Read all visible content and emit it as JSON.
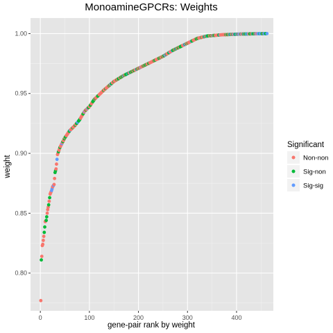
{
  "chart_data": {
    "type": "scatter",
    "title": "MonoamineGPCRs: Weights",
    "xlabel": "gene-pair rank by weight",
    "ylabel": "weight",
    "xlim": [
      -20,
      475
    ],
    "ylim": [
      0.7685,
      1.013
    ],
    "x_ticks": [
      0,
      100,
      200,
      300,
      400
    ],
    "y_ticks": [
      0.8,
      0.85,
      0.9,
      0.95,
      1.0
    ],
    "y_tick_labels": [
      "0.80",
      "0.85",
      "0.90",
      "0.95",
      "1.00"
    ],
    "background": "#e5e5e5",
    "grid": true,
    "legend": {
      "title": "Significant",
      "position": "right",
      "entries": [
        {
          "label": "Non-non",
          "color": "#f8766d"
        },
        {
          "label": "Sig-non",
          "color": "#00ba38"
        },
        {
          "label": "Sig-sig",
          "color": "#619cff"
        }
      ]
    },
    "series": [
      {
        "name": "Non-non",
        "color": "#f8766d"
      },
      {
        "name": "Sig-non",
        "color": "#00ba38"
      },
      {
        "name": "Sig-sig",
        "color": "#619cff"
      }
    ],
    "curve_anchors": [
      [
        1,
        0.777
      ],
      [
        2,
        0.811
      ],
      [
        3,
        0.814
      ],
      [
        4,
        0.823
      ],
      [
        5,
        0.824
      ],
      [
        8,
        0.834
      ],
      [
        10,
        0.843
      ],
      [
        12,
        0.844
      ],
      [
        15,
        0.853
      ],
      [
        17,
        0.857
      ],
      [
        20,
        0.866
      ],
      [
        23,
        0.869
      ],
      [
        25,
        0.872
      ],
      [
        28,
        0.874
      ],
      [
        30,
        0.884
      ],
      [
        32,
        0.887
      ],
      [
        35,
        0.899
      ],
      [
        40,
        0.905
      ],
      [
        45,
        0.909
      ],
      [
        50,
        0.913
      ],
      [
        55,
        0.916
      ],
      [
        60,
        0.919
      ],
      [
        70,
        0.923
      ],
      [
        80,
        0.928
      ],
      [
        90,
        0.935
      ],
      [
        100,
        0.939
      ],
      [
        110,
        0.945
      ],
      [
        120,
        0.949
      ],
      [
        130,
        0.953
      ],
      [
        150,
        0.96
      ],
      [
        170,
        0.965
      ],
      [
        200,
        0.971
      ],
      [
        230,
        0.977
      ],
      [
        250,
        0.981
      ],
      [
        270,
        0.986
      ],
      [
        300,
        0.992
      ],
      [
        320,
        0.996
      ],
      [
        340,
        0.998
      ],
      [
        370,
        0.999
      ],
      [
        400,
        0.9995
      ],
      [
        430,
        0.9998
      ],
      [
        462,
        1.0
      ]
    ],
    "n_points": 462
  }
}
